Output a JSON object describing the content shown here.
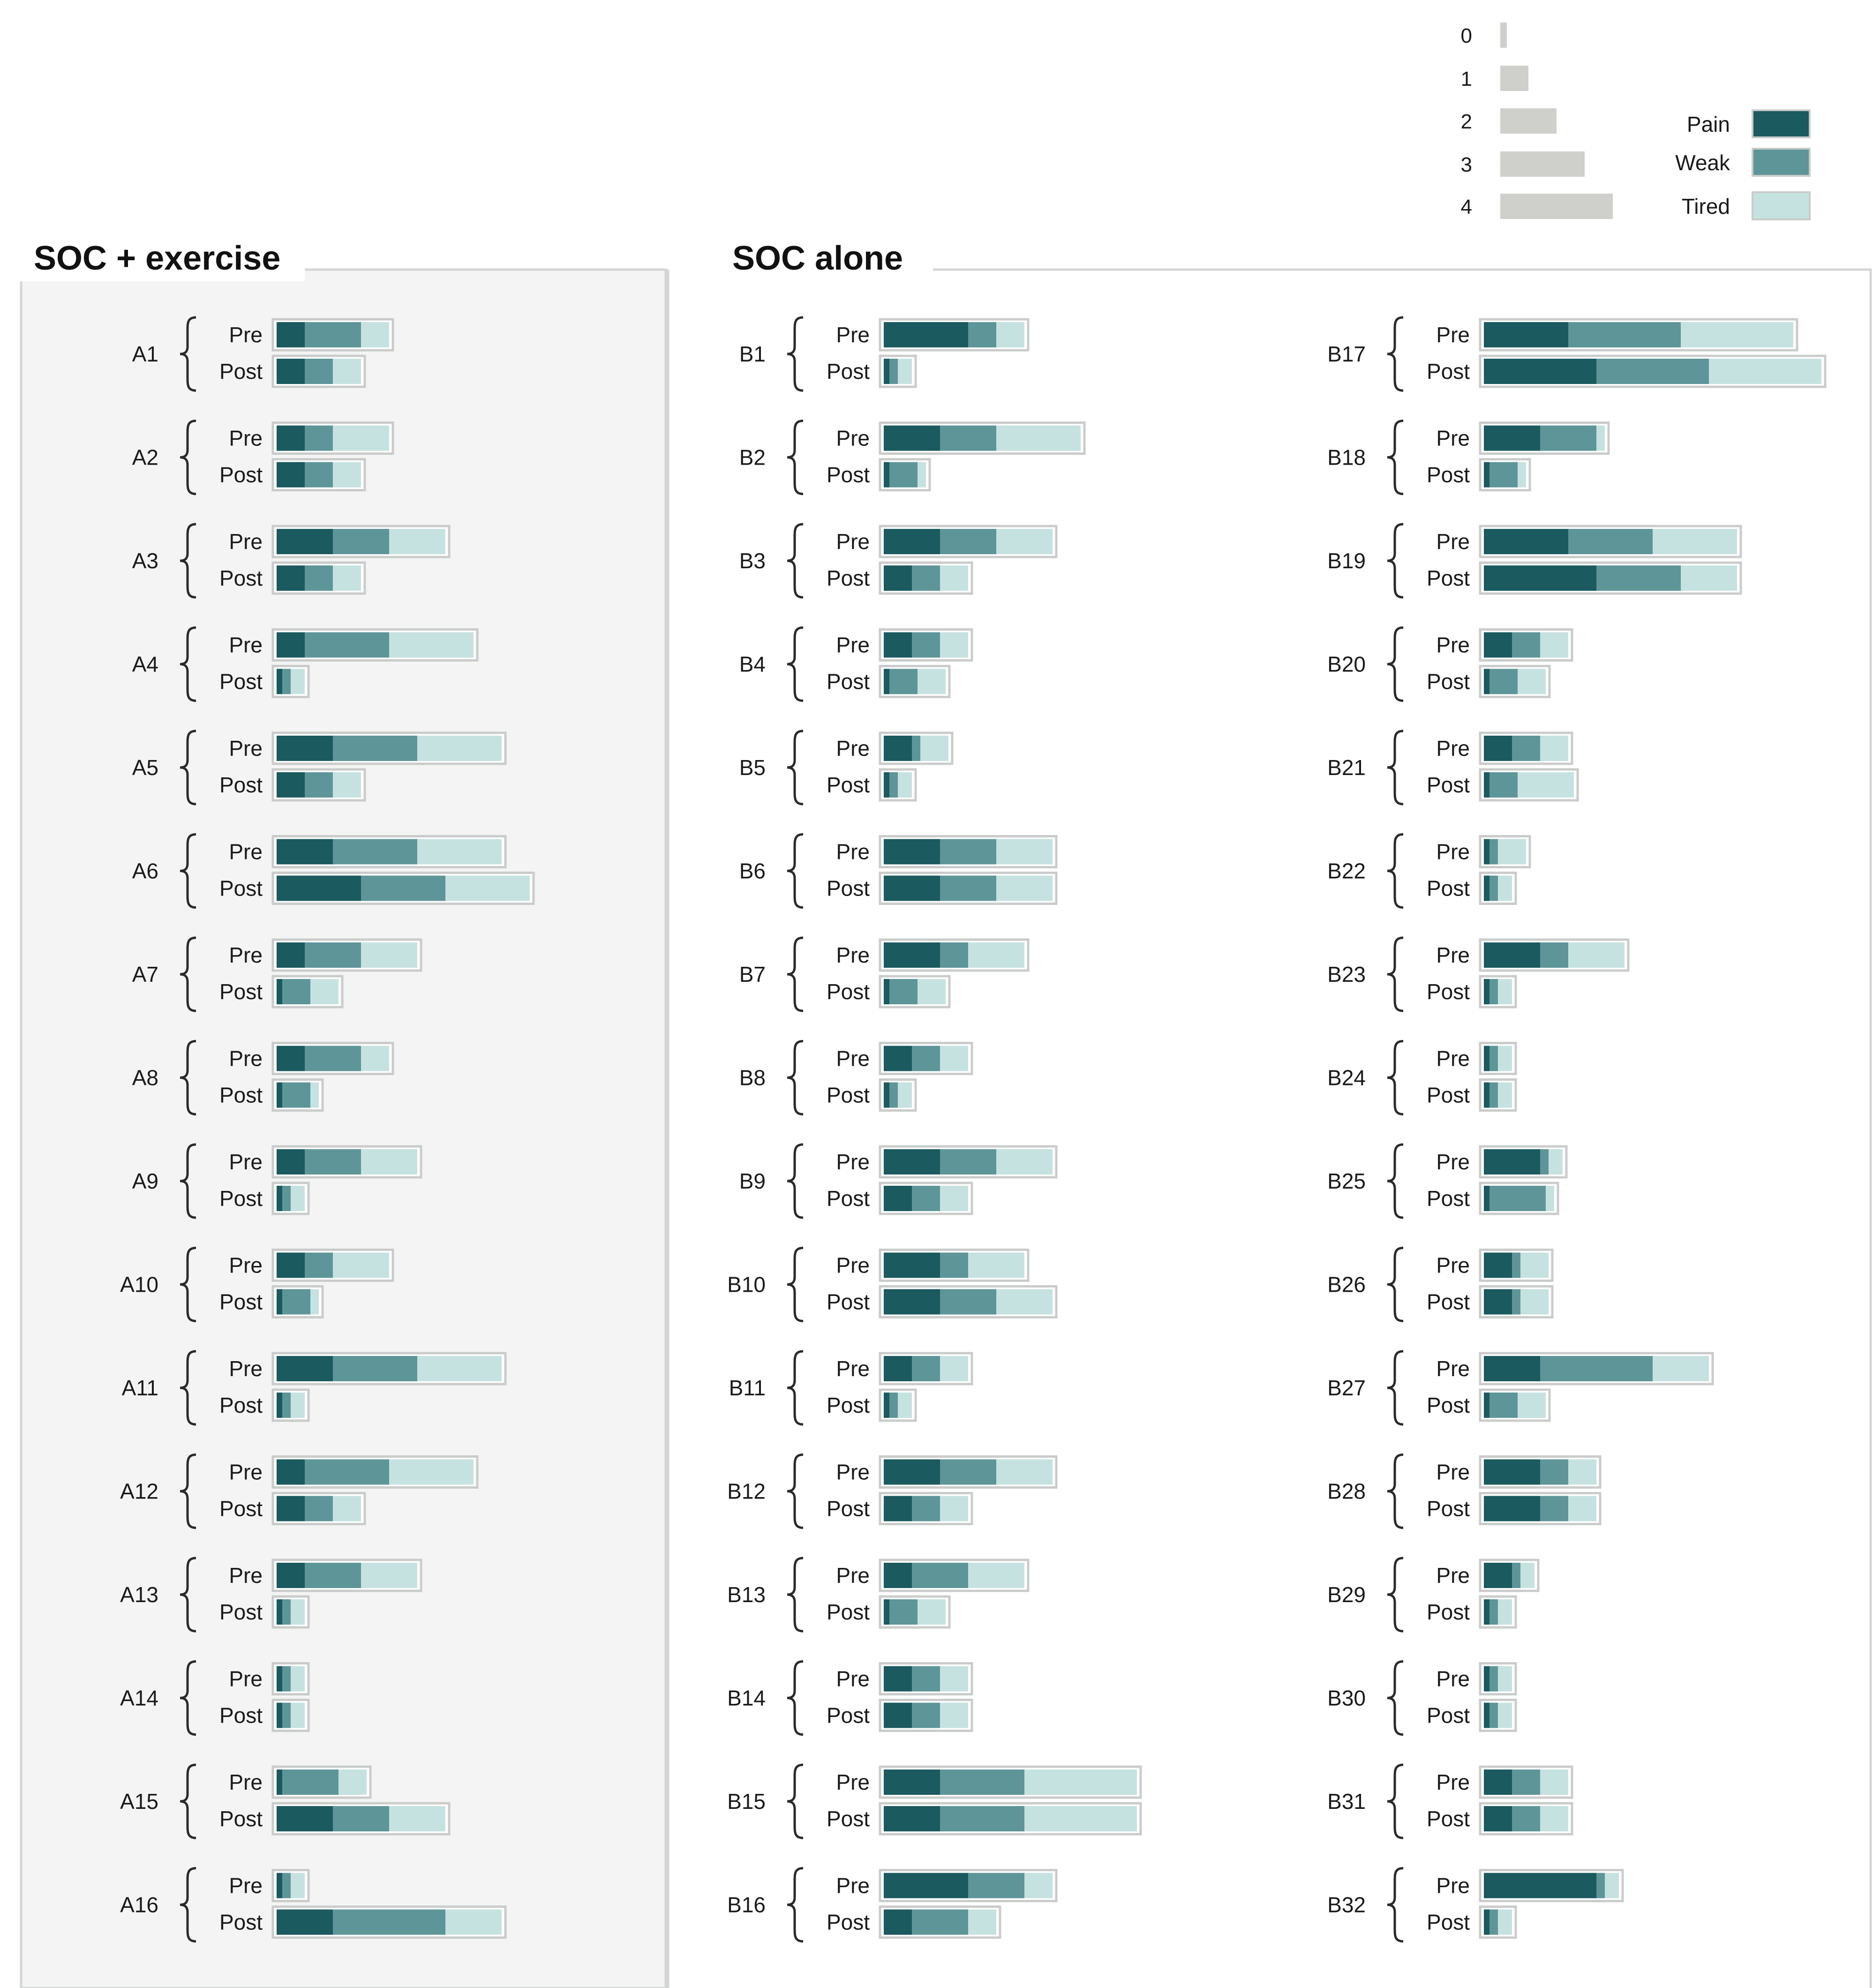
{
  "chart_data": {
    "type": "bar",
    "stacked": true,
    "legend_scale": {
      "labels": [
        "0",
        "1",
        "2",
        "3",
        "4"
      ],
      "values": [
        0,
        1,
        2,
        3,
        4
      ]
    },
    "legend_series": [
      "Pain",
      "Weak",
      "Tired"
    ],
    "colors": {
      "Pain": "#1b5a5f",
      "Weak": "#5e9598",
      "Tired": "#c6e2e0",
      "scale_grey": "#cfcfcb",
      "bar_outline": "#c9ccca",
      "panel_a_bg": "#f3f4f3",
      "panel_border": "#d4d6d5"
    },
    "row_labels": [
      "Pre",
      "Post"
    ],
    "panels": [
      {
        "title": "SOC + exercise",
        "columns": [
          [
            {
              "id": "A1",
              "pre": [
                1,
                2,
                1
              ],
              "post": [
                1,
                1,
                1
              ]
            },
            {
              "id": "A2",
              "pre": [
                1,
                1,
                2
              ],
              "post": [
                1,
                1,
                1
              ]
            },
            {
              "id": "A3",
              "pre": [
                2,
                2,
                2
              ],
              "post": [
                1,
                1,
                1
              ]
            },
            {
              "id": "A4",
              "pre": [
                1,
                3,
                3
              ],
              "post": [
                0.2,
                0.3,
                0.5
              ]
            },
            {
              "id": "A5",
              "pre": [
                2,
                3,
                3
              ],
              "post": [
                1,
                1,
                1
              ]
            },
            {
              "id": "A6",
              "pre": [
                2,
                3,
                3
              ],
              "post": [
                3,
                3,
                3
              ]
            },
            {
              "id": "A7",
              "pre": [
                1,
                2,
                2
              ],
              "post": [
                0.2,
                1,
                1
              ]
            },
            {
              "id": "A8",
              "pre": [
                1,
                2,
                1
              ],
              "post": [
                0.2,
                1,
                0.3
              ]
            },
            {
              "id": "A9",
              "pre": [
                1,
                2,
                2
              ],
              "post": [
                0.2,
                0.3,
                0.5
              ]
            },
            {
              "id": "A10",
              "pre": [
                1,
                1,
                2
              ],
              "post": [
                0.2,
                1,
                0.3
              ]
            },
            {
              "id": "A11",
              "pre": [
                2,
                3,
                3
              ],
              "post": [
                0.2,
                0.3,
                0.5
              ]
            },
            {
              "id": "A12",
              "pre": [
                1,
                3,
                3
              ],
              "post": [
                1,
                1,
                1
              ]
            },
            {
              "id": "A13",
              "pre": [
                1,
                2,
                2
              ],
              "post": [
                0.2,
                0.3,
                0.5
              ]
            },
            {
              "id": "A14",
              "pre": [
                0.2,
                0.3,
                0.5
              ],
              "post": [
                0.2,
                0.3,
                0.5
              ]
            },
            {
              "id": "A15",
              "pre": [
                0.2,
                2,
                1
              ],
              "post": [
                2,
                2,
                2
              ]
            },
            {
              "id": "A16",
              "pre": [
                0.2,
                0.3,
                0.5
              ],
              "post": [
                2,
                4,
                2
              ]
            }
          ]
        ]
      },
      {
        "title": "SOC alone",
        "columns": [
          [
            {
              "id": "B1",
              "pre": [
                3,
                1,
                1
              ],
              "post": [
                0.2,
                0.3,
                0.5
              ]
            },
            {
              "id": "B2",
              "pre": [
                2,
                2,
                3
              ],
              "post": [
                0.2,
                1,
                0.3
              ]
            },
            {
              "id": "B3",
              "pre": [
                2,
                2,
                2
              ],
              "post": [
                1,
                1,
                1
              ]
            },
            {
              "id": "B4",
              "pre": [
                1,
                1,
                1
              ],
              "post": [
                0.2,
                1,
                1
              ]
            },
            {
              "id": "B5",
              "pre": [
                1,
                0.3,
                1
              ],
              "post": [
                0.2,
                0.3,
                0.5
              ]
            },
            {
              "id": "B6",
              "pre": [
                2,
                2,
                2
              ],
              "post": [
                2,
                2,
                2
              ]
            },
            {
              "id": "B7",
              "pre": [
                2,
                1,
                2
              ],
              "post": [
                0.2,
                1,
                1
              ]
            },
            {
              "id": "B8",
              "pre": [
                1,
                1,
                1
              ],
              "post": [
                0.2,
                0.3,
                0.5
              ]
            },
            {
              "id": "B9",
              "pre": [
                2,
                2,
                2
              ],
              "post": [
                1,
                1,
                1
              ]
            },
            {
              "id": "B10",
              "pre": [
                2,
                1,
                2
              ],
              "post": [
                2,
                2,
                2
              ]
            },
            {
              "id": "B11",
              "pre": [
                1,
                1,
                1
              ],
              "post": [
                0.2,
                0.3,
                0.5
              ]
            },
            {
              "id": "B12",
              "pre": [
                2,
                2,
                2
              ],
              "post": [
                1,
                1,
                1
              ]
            },
            {
              "id": "B13",
              "pre": [
                1,
                2,
                2
              ],
              "post": [
                0.2,
                1,
                1
              ]
            },
            {
              "id": "B14",
              "pre": [
                1,
                1,
                1
              ],
              "post": [
                1,
                1,
                1
              ]
            },
            {
              "id": "B15",
              "pre": [
                2,
                3,
                4
              ],
              "post": [
                2,
                3,
                4
              ]
            },
            {
              "id": "B16",
              "pre": [
                3,
                2,
                1
              ],
              "post": [
                1,
                2,
                1
              ]
            }
          ],
          [
            {
              "id": "B17",
              "pre": [
                3,
                4,
                4
              ],
              "post": [
                4,
                4,
                4
              ]
            },
            {
              "id": "B18",
              "pre": [
                2,
                2,
                0.3
              ],
              "post": [
                0.2,
                1,
                0.3
              ]
            },
            {
              "id": "B19",
              "pre": [
                3,
                3,
                3
              ],
              "post": [
                4,
                3,
                2
              ]
            },
            {
              "id": "B20",
              "pre": [
                1,
                1,
                1
              ],
              "post": [
                0.2,
                1,
                1
              ]
            },
            {
              "id": "B21",
              "pre": [
                1,
                1,
                1
              ],
              "post": [
                0.2,
                1,
                2
              ]
            },
            {
              "id": "B22",
              "pre": [
                0.2,
                0.3,
                1
              ],
              "post": [
                0.2,
                0.3,
                0.5
              ]
            },
            {
              "id": "B23",
              "pre": [
                2,
                1,
                2
              ],
              "post": [
                0.2,
                0.3,
                0.5
              ]
            },
            {
              "id": "B24",
              "pre": [
                0.2,
                0.3,
                0.5
              ],
              "post": [
                0.2,
                0.3,
                0.5
              ]
            },
            {
              "id": "B25",
              "pre": [
                2,
                0.3,
                0.5
              ],
              "post": [
                0.2,
                2,
                0.3
              ]
            },
            {
              "id": "B26",
              "pre": [
                1,
                0.3,
                1
              ],
              "post": [
                1,
                0.3,
                1
              ]
            },
            {
              "id": "B27",
              "pre": [
                2,
                4,
                2
              ],
              "post": [
                0.2,
                1,
                1
              ]
            },
            {
              "id": "B28",
              "pre": [
                2,
                1,
                1
              ],
              "post": [
                2,
                1,
                1
              ]
            },
            {
              "id": "B29",
              "pre": [
                1,
                0.3,
                0.5
              ],
              "post": [
                0.2,
                0.3,
                0.5
              ]
            },
            {
              "id": "B30",
              "pre": [
                0.2,
                0.3,
                0.5
              ],
              "post": [
                0.2,
                0.3,
                0.5
              ]
            },
            {
              "id": "B31",
              "pre": [
                1,
                1,
                1
              ],
              "post": [
                1,
                1,
                1
              ]
            },
            {
              "id": "B32",
              "pre": [
                4,
                0.3,
                0.5
              ],
              "post": [
                0.2,
                0.3,
                0.5
              ]
            }
          ]
        ]
      }
    ]
  }
}
